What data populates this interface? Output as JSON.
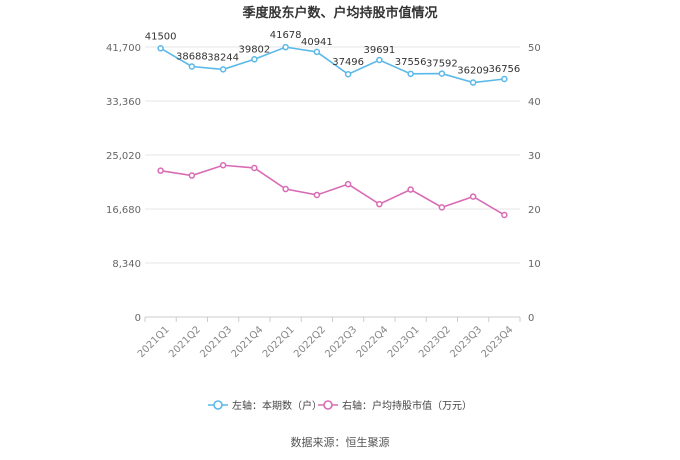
{
  "chart_data": {
    "type": "line",
    "title": "季度股东户数、户均持股市值情况",
    "categories": [
      "2021Q1",
      "2021Q2",
      "2021Q3",
      "2021Q4",
      "2022Q1",
      "2022Q2",
      "2022Q3",
      "2022Q4",
      "2023Q1",
      "2023Q2",
      "2023Q3",
      "2023Q4"
    ],
    "left_axis": {
      "ylim": [
        0,
        41700
      ],
      "ticks": [
        "0",
        "8,340",
        "16,680",
        "25,020",
        "33,360",
        "41,700"
      ],
      "tick_values": [
        0,
        8340,
        16680,
        25020,
        33360,
        41700
      ]
    },
    "right_axis": {
      "ylim": [
        0,
        50
      ],
      "ticks": [
        "0",
        "10",
        "20",
        "30",
        "40",
        "50"
      ],
      "tick_values": [
        0,
        10,
        20,
        30,
        40,
        50
      ]
    },
    "series": [
      {
        "name": "左轴：本期数（户）",
        "axis": "left",
        "color": "#5ab9e8",
        "values": [
          41500,
          38688,
          38244,
          39802,
          41678,
          40941,
          37496,
          39691,
          37556,
          37592,
          36209,
          36756
        ],
        "labels": [
          "41500",
          "38688",
          "38244",
          "39802",
          "41678",
          "40941",
          "37496",
          "39691",
          "37556",
          "37592",
          "36209",
          "36756"
        ]
      },
      {
        "name": "右轴：户均持股市值（万元）",
        "axis": "right",
        "color": "#d96bb4",
        "values": [
          27.1,
          26.2,
          28.1,
          27.6,
          23.7,
          22.6,
          24.6,
          20.9,
          23.6,
          20.3,
          22.3,
          18.9
        ]
      }
    ],
    "grid": true,
    "legend_position": "bottom"
  },
  "source": "数据来源：恒生聚源"
}
